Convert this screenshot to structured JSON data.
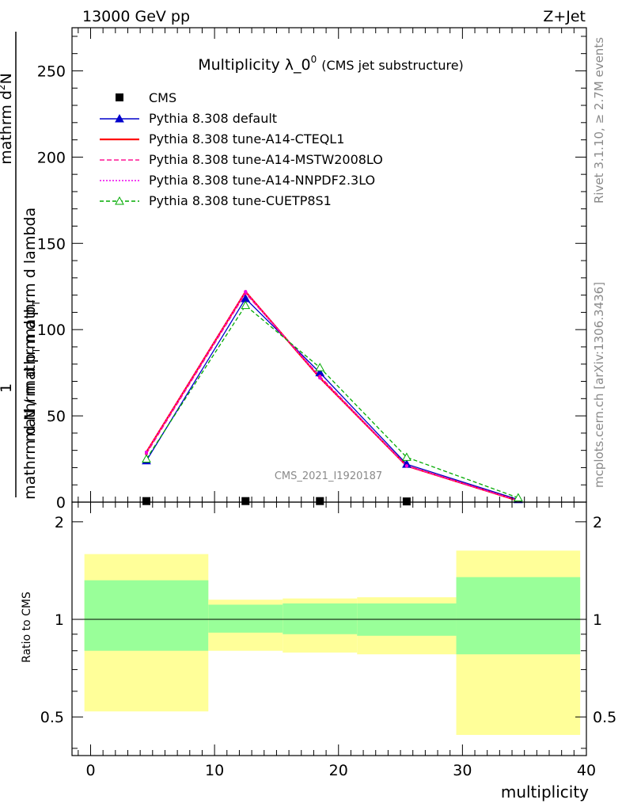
{
  "header": {
    "left": "13000 GeV pp",
    "right": "Z+Jet"
  },
  "side_labels": {
    "rivet": "Rivet 3.1.10, ≥ 2.7M events",
    "mcplots": "mcplots.cern.ch [arXiv:1306.3436]"
  },
  "chart_data": {
    "type": "line",
    "title_main": "Multiplicity λ_0",
    "title_sup": "0",
    "title_note": "(CMS jet substructure)",
    "analysis_label": "CMS_2021_I1920187",
    "ylabel_numerator_main": "mathrm d",
    "ylabel_numerator_sup": "2",
    "ylabel_numerator_end": "N",
    "ylabel_numerator_den": "mathrm d p",
    "ylabel_numerator_den_sub": "T",
    "ylabel_numerator_den_end": " mathrm d lambda",
    "ylabel_main_one": "1",
    "ylabel_main_den": "mathrm d N / mathrm d p",
    "ylabel_main_den_sub": "T",
    "xlabel": "multiplicity",
    "ratio_ylabel": "Ratio to CMS",
    "xlim": [
      -1.5,
      40
    ],
    "ylim": [
      0,
      275
    ],
    "ratio_ylim": [
      0.38,
      2.3
    ],
    "x_ticks": [
      0,
      10,
      20,
      30,
      40
    ],
    "y_ticks": [
      0,
      50,
      100,
      150,
      200,
      250
    ],
    "ratio_ticks": [
      0.5,
      1,
      2
    ],
    "bins": [
      [
        -0.5,
        9.5
      ],
      [
        9.5,
        15.5
      ],
      [
        15.5,
        21.5
      ],
      [
        21.5,
        29.5
      ],
      [
        29.5,
        39.5
      ]
    ],
    "x": [
      4.5,
      12.5,
      18.5,
      25.5,
      34.5
    ],
    "data": {
      "name": "CMS",
      "values": [
        0.6,
        0.6,
        0.6,
        0.4,
        0.0
      ]
    },
    "series": [
      {
        "name": "Pythia 8.308 default",
        "color": "#0000cc",
        "dash": "",
        "marker": "triangle-filled",
        "values": [
          24,
          118,
          75,
          22,
          1.5
        ]
      },
      {
        "name": "Pythia 8.308 tune-A14-CTEQL1",
        "color": "#ff0000",
        "dash": "",
        "marker": "none",
        "values": [
          29,
          122,
          72,
          21,
          0.8
        ]
      },
      {
        "name": "Pythia 8.308 tune-A14-MSTW2008LO",
        "color": "#ff1493",
        "dash": "6,3",
        "marker": "none",
        "values": [
          28,
          121,
          73,
          21,
          0.8
        ]
      },
      {
        "name": "Pythia 8.308 tune-A14-NNPDF2.3LO",
        "color": "#ee00ee",
        "dash": "2,2",
        "marker": "none",
        "values": [
          29,
          122,
          72,
          21,
          0.9
        ]
      },
      {
        "name": "Pythia 8.308 tune-CUETP8S1",
        "color": "#00aa00",
        "dash": "5,3",
        "marker": "triangle-open",
        "values": [
          25,
          114,
          78,
          26,
          2.5
        ]
      }
    ],
    "ratio_bands": {
      "outer_color": "#ffff99",
      "inner_color": "#99ff99",
      "outer": [
        [
          0.52,
          1.59
        ],
        [
          0.8,
          1.15
        ],
        [
          0.79,
          1.16
        ],
        [
          0.78,
          1.17
        ],
        [
          0.44,
          1.63
        ]
      ],
      "inner": [
        [
          0.8,
          1.32
        ],
        [
          0.91,
          1.11
        ],
        [
          0.9,
          1.12
        ],
        [
          0.89,
          1.12
        ],
        [
          0.78,
          1.35
        ]
      ]
    }
  }
}
